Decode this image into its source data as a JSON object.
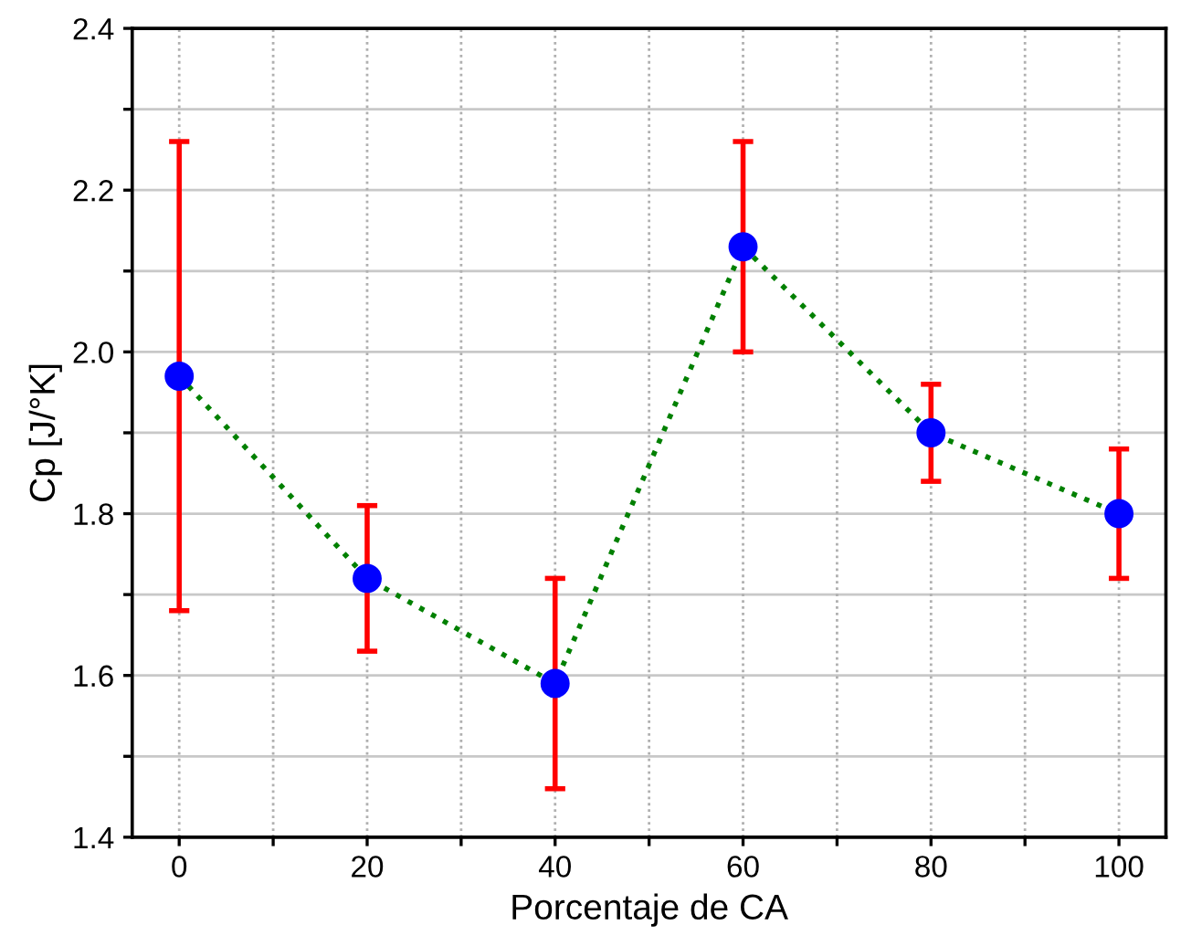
{
  "chart_data": {
    "type": "scatter",
    "xlabel": "Porcentaje de CA",
    "ylabel": "Cp [J/°K]",
    "x": [
      0,
      20,
      40,
      60,
      80,
      100
    ],
    "series": [
      {
        "type": "line",
        "color": "#008000",
        "line_style": "dotted",
        "values": [
          1.97,
          1.72,
          1.59,
          2.13,
          1.9,
          1.8
        ]
      },
      {
        "color": "#0000ff",
        "marker": "circle",
        "values": [
          1.97,
          1.72,
          1.59,
          2.13,
          1.9,
          1.8
        ],
        "errors": [
          [
            1.68,
            2.26
          ],
          [
            1.63,
            1.81
          ],
          [
            1.46,
            1.72
          ],
          [
            2.0,
            2.26
          ],
          [
            1.84,
            1.96
          ],
          [
            1.72,
            1.88
          ]
        ]
      }
    ],
    "xlim": [
      -5,
      105
    ],
    "ylim": [
      1.4,
      2.4
    ],
    "xticks": [
      0,
      {
        "value": 10,
        "label": null
      },
      20,
      {
        "value": 30,
        "label": null
      },
      40,
      {
        "value": 50,
        "label": null
      },
      60,
      {
        "value": 70,
        "label": null
      },
      80,
      {
        "value": 90,
        "label": null
      },
      100
    ],
    "yticks": [
      1.4,
      {
        "value": 1.5,
        "label": null
      },
      1.6,
      {
        "value": 1.7,
        "label": null
      },
      1.8,
      {
        "value": 1.9,
        "label": null
      },
      {
        "value": 2.0,
        "label": "2.0"
      },
      {
        "value": 2.1,
        "label": null
      },
      2.2,
      {
        "value": 2.3,
        "label": null
      },
      2.4
    ],
    "grid": true,
    "legend": false
  }
}
